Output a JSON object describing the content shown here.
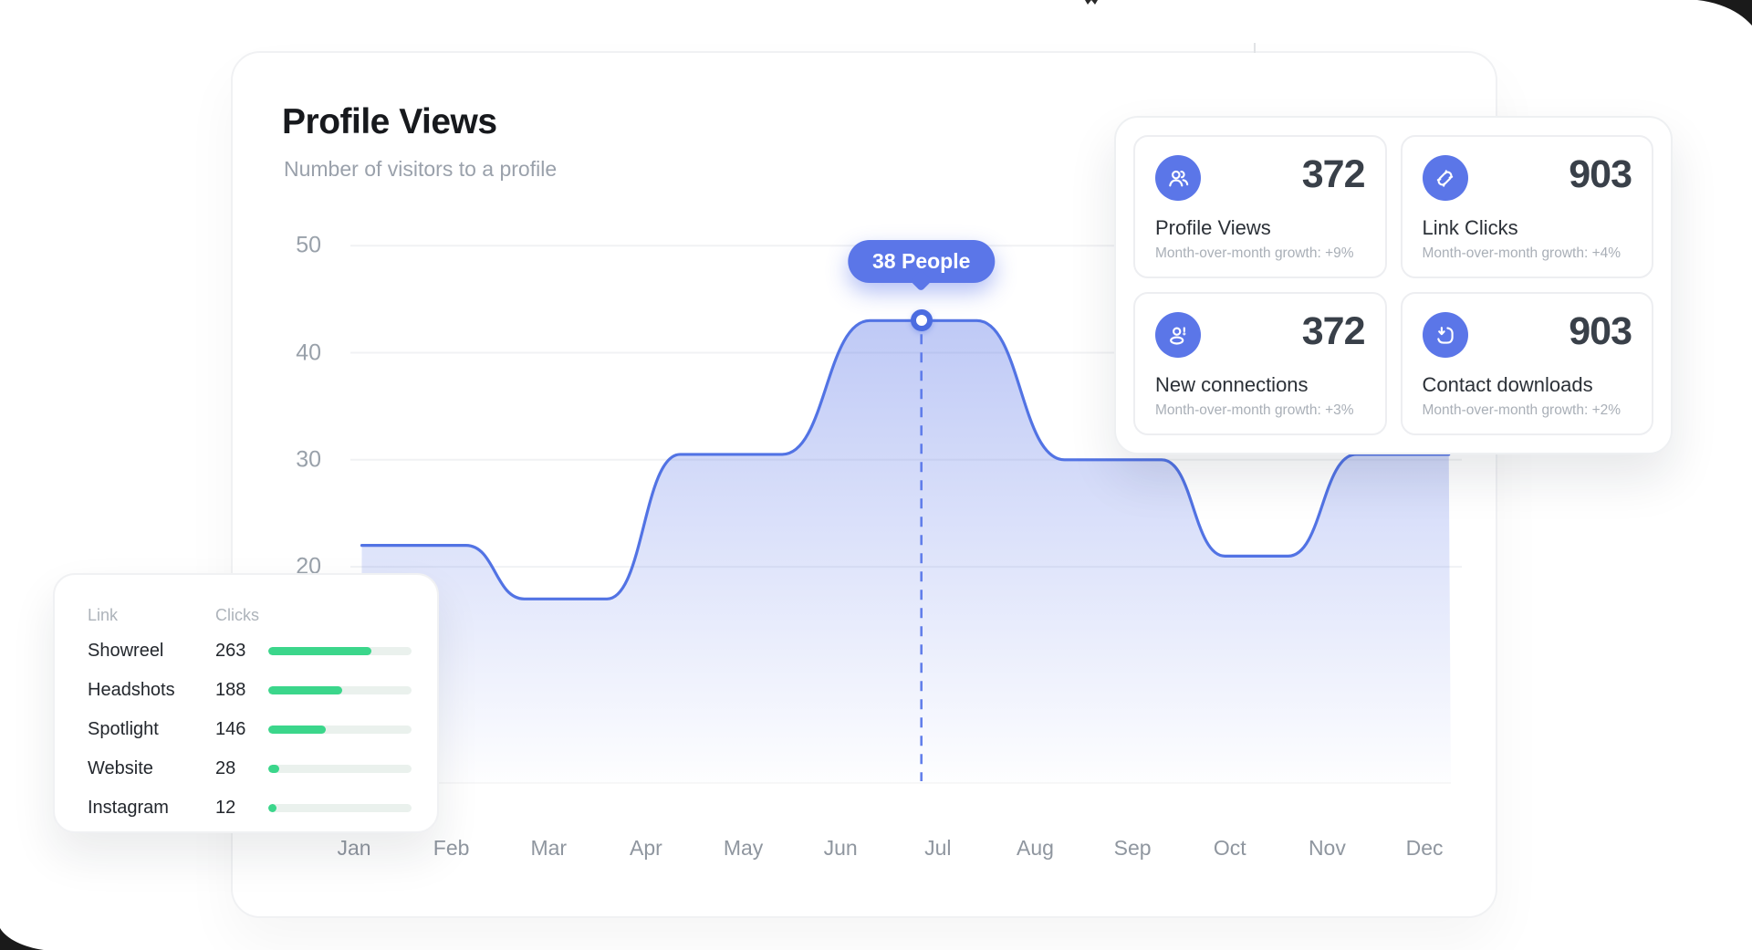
{
  "page": {
    "background": "#ffffff",
    "corner_color": "#1a1a1a",
    "accent_blue": "#5b76e8",
    "accent_green": "#3bd68b"
  },
  "header": {
    "title": "Profile Views",
    "subtitle": "Number of visitors to a profile"
  },
  "chart_data": {
    "type": "area",
    "title": "Profile Views",
    "x_categories": [
      "Jan",
      "Feb",
      "Mar",
      "Apr",
      "May",
      "Jun",
      "Jul",
      "Aug",
      "Sep",
      "Oct",
      "Nov",
      "Dec"
    ],
    "y_ticks": [
      20,
      30,
      40,
      50
    ],
    "ylim": [
      0,
      50
    ],
    "grid": "horizontal",
    "legend": "none",
    "series": [
      {
        "name": "Profile views",
        "monthly_values": [
          22,
          22,
          17,
          29,
          30,
          38,
          43,
          33,
          30,
          21,
          28,
          30
        ]
      }
    ],
    "smooth_anchors": [
      {
        "x": 0.08,
        "v": 22
      },
      {
        "x": 1.15,
        "v": 22
      },
      {
        "x": 1.75,
        "v": 17
      },
      {
        "x": 2.6,
        "v": 17
      },
      {
        "x": 3.35,
        "v": 30.5
      },
      {
        "x": 4.4,
        "v": 30.5
      },
      {
        "x": 5.3,
        "v": 43
      },
      {
        "x": 6.4,
        "v": 43
      },
      {
        "x": 7.3,
        "v": 30
      },
      {
        "x": 8.3,
        "v": 30
      },
      {
        "x": 8.95,
        "v": 21
      },
      {
        "x": 9.6,
        "v": 21
      },
      {
        "x": 10.3,
        "v": 30.5
      },
      {
        "x": 11.25,
        "v": 30.5
      }
    ],
    "tooltip": {
      "label": "38 People",
      "x": 5.83,
      "v": 43
    },
    "line_color": "#5273e4",
    "fill_top": "rgba(91,118,232,0.40)",
    "fill_bottom": "rgba(91,118,232,0)",
    "grid_color": "#f1f2f4"
  },
  "stats": {
    "cards": [
      {
        "icon": "users-icon",
        "value": "372",
        "label": "Profile Views",
        "caption": "Month-over-month growth: +9%"
      },
      {
        "icon": "link-icon",
        "value": "903",
        "label": "Link Clicks",
        "caption": "Month-over-month growth: +4%"
      },
      {
        "icon": "person-alert-icon",
        "value": "372",
        "label": "New connections",
        "caption": "Month-over-month growth: +3%"
      },
      {
        "icon": "download-contact-icon",
        "value": "903",
        "label": "Contact downloads",
        "caption": "Month-over-month growth: +2%"
      }
    ]
  },
  "links": {
    "col_link": "Link",
    "col_clicks": "Clicks",
    "max_scale": 365,
    "rows": [
      {
        "label": "Showreel",
        "value": 263
      },
      {
        "label": "Headshots",
        "value": 188
      },
      {
        "label": "Spotlight",
        "value": 146
      },
      {
        "label": "Website",
        "value": 28
      },
      {
        "label": "Instagram",
        "value": 12
      }
    ]
  }
}
